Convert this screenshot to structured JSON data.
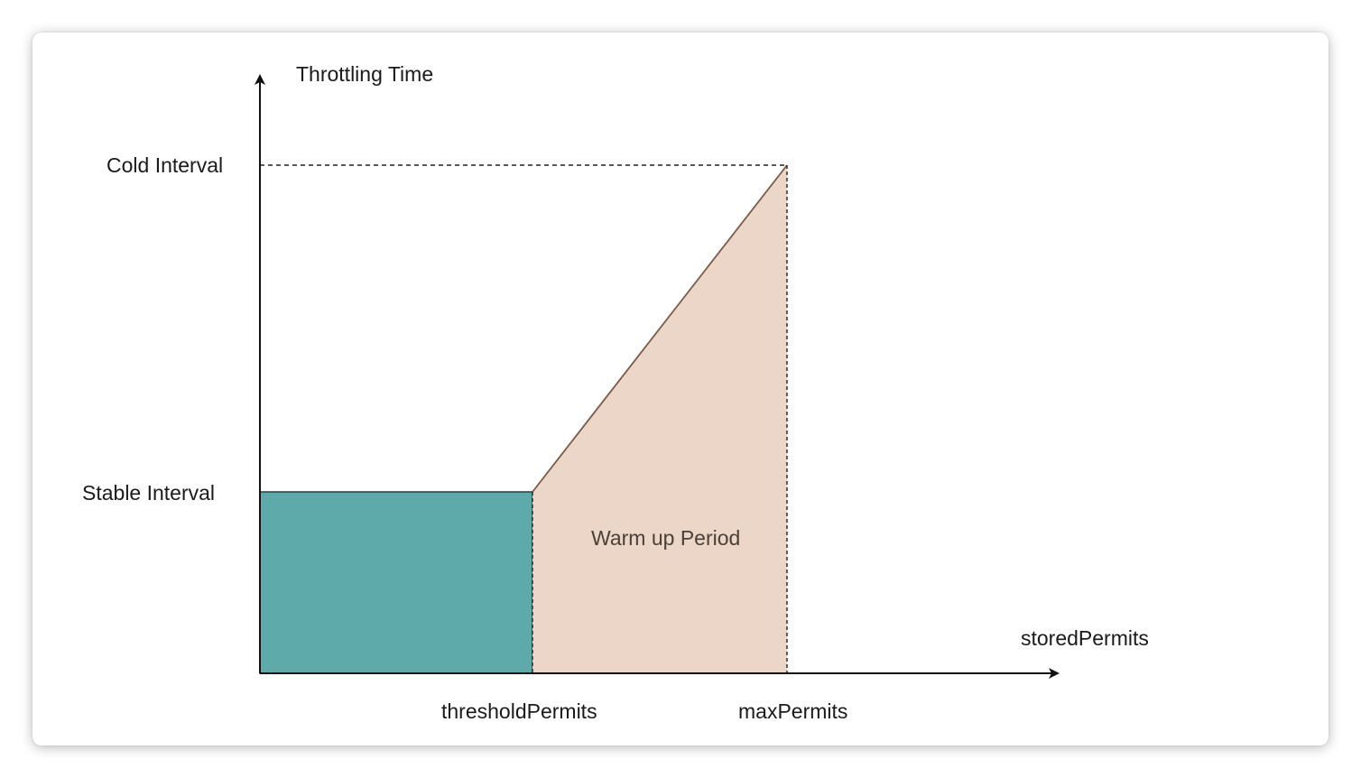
{
  "diagram": {
    "y_axis_label": "Throttling Time",
    "x_axis_label": "storedPermits",
    "cold_interval_label": "Cold Interval",
    "stable_interval_label": "Stable Interval",
    "threshold_label": "thresholdPermits",
    "max_label": "maxPermits",
    "warmup_label": "Warm up Period"
  },
  "colors": {
    "stable_fill": "#5ea9aa",
    "warmup_fill": "#ecd6c8",
    "slope_line": "#7a5a48",
    "axis": "#111111"
  }
}
